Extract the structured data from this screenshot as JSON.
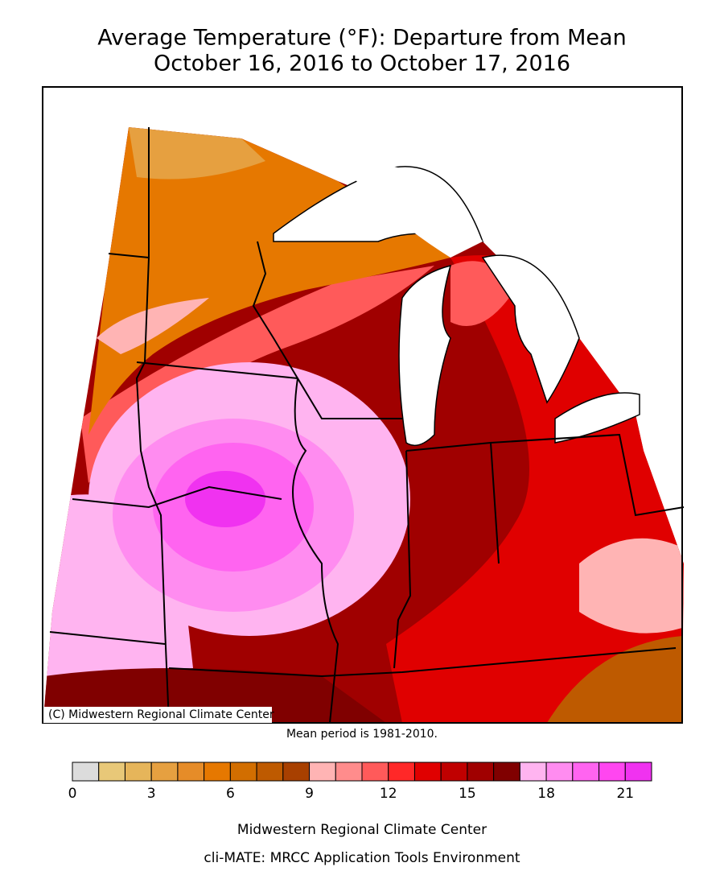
{
  "header": {
    "title": "Average Temperature (°F): Departure from Mean",
    "subtitle": "October 16, 2016 to October 17, 2016"
  },
  "map": {
    "credit": "(C) Midwestern Regional Climate Center",
    "note": "Mean period is 1981-2010."
  },
  "colorbar": {
    "bins": [
      0,
      1,
      2,
      3,
      4,
      5,
      6,
      7,
      8,
      9,
      10,
      11,
      12,
      13,
      14,
      15,
      16,
      17,
      18,
      19,
      20,
      21,
      22
    ],
    "colors": [
      "#dcdcdc",
      "#e8c878",
      "#e6b55a",
      "#e6a040",
      "#e68c28",
      "#e67800",
      "#d26e00",
      "#be5a00",
      "#a84000",
      "#ffb4b4",
      "#ff8c8c",
      "#ff5a5a",
      "#ff2828",
      "#e00000",
      "#c00000",
      "#a00000",
      "#800000",
      "#ffb4f0",
      "#ff8cf0",
      "#ff64f0",
      "#ff46f0",
      "#f032f0"
    ],
    "ticks": [
      0,
      3,
      6,
      9,
      12,
      15,
      18,
      21
    ]
  },
  "footer": {
    "line1": "Midwestern Regional Climate Center",
    "line2": "cli-MATE: MRCC Application Tools Environment"
  }
}
